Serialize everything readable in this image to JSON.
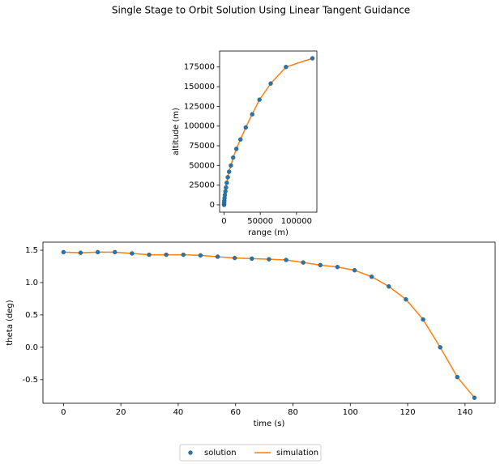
{
  "title": "Single Stage to Orbit Solution Using Linear Tangent Guidance",
  "chart_data": [
    {
      "type": "line",
      "xlabel": "range (m)",
      "ylabel": "altitude (m)",
      "x": [
        0,
        70,
        200,
        400,
        700,
        1200,
        1900,
        2700,
        3800,
        5200,
        7000,
        9500,
        12600,
        17000,
        22700,
        30000,
        38900,
        48900,
        64400,
        85500,
        122000
      ],
      "series": [
        {
          "name": "solution",
          "color": "#1f77b4",
          "marker": "o",
          "values": [
            0,
            1000,
            2700,
            5200,
            8500,
            12500,
            17000,
            22000,
            28000,
            35000,
            42000,
            50000,
            60000,
            71000,
            83000,
            98300,
            115000,
            133500,
            154000,
            175000,
            186000
          ]
        },
        {
          "name": "simulation",
          "color": "#ff7f0e",
          "values": [
            0,
            1000,
            2700,
            5200,
            8500,
            12500,
            17000,
            22000,
            28000,
            35000,
            42000,
            50000,
            60000,
            71000,
            83000,
            98300,
            115000,
            133500,
            154000,
            175000,
            186000
          ]
        }
      ],
      "xlim": [
        -6100,
        128100
      ],
      "ylim": [
        -9300,
        195300
      ],
      "xticks": [
        0,
        50000,
        100000
      ],
      "yticks": [
        0,
        25000,
        50000,
        75000,
        100000,
        125000,
        150000,
        175000
      ]
    },
    {
      "type": "line",
      "xlabel": "time (s)",
      "ylabel": "theta (deg)",
      "x": [
        0,
        5.97,
        11.94,
        17.91,
        23.88,
        29.85,
        35.82,
        41.79,
        47.76,
        53.73,
        59.7,
        65.67,
        71.64,
        77.61,
        83.58,
        89.55,
        95.52,
        101.49,
        107.46,
        113.43,
        119.4,
        125.37,
        131.34,
        137.31,
        143.28
      ],
      "series": [
        {
          "name": "solution",
          "color": "#1f77b4",
          "marker": "o",
          "values": [
            1.47,
            1.46,
            1.47,
            1.47,
            1.45,
            1.43,
            1.43,
            1.43,
            1.42,
            1.4,
            1.38,
            1.37,
            1.36,
            1.35,
            1.31,
            1.27,
            1.24,
            1.19,
            1.09,
            0.94,
            0.74,
            0.43,
            0.0,
            -0.46,
            -0.78
          ]
        },
        {
          "name": "simulation",
          "color": "#ff7f0e",
          "values": [
            1.47,
            1.46,
            1.47,
            1.47,
            1.45,
            1.43,
            1.43,
            1.43,
            1.42,
            1.4,
            1.38,
            1.37,
            1.36,
            1.35,
            1.31,
            1.27,
            1.24,
            1.19,
            1.09,
            0.94,
            0.74,
            0.43,
            0.0,
            -0.46,
            -0.78
          ]
        }
      ],
      "xlim": [
        -7.17,
        150.5
      ],
      "ylim": [
        -0.865,
        1.625
      ],
      "xticks": [
        0,
        20,
        40,
        60,
        80,
        100,
        120,
        140
      ],
      "yticks": [
        -0.5,
        {
          "value": 0,
          "label": "0.0"
        },
        0.5,
        {
          "value": 1,
          "label": "1.0"
        },
        1.5
      ]
    }
  ]
}
